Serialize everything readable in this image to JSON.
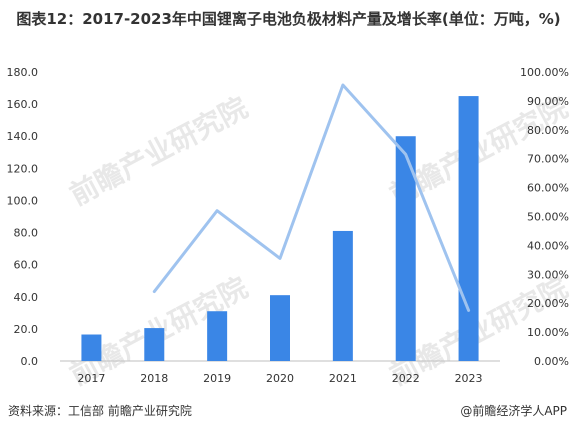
{
  "title": "图表12：2017-2023年中国锂离子电池负极材料产量及增长率(单位：万吨，%)",
  "source": "资料来源：工信部 前瞻产业研究院",
  "brand": "@前瞻经济学人APP",
  "watermark": "前瞻产业研究院",
  "colors": {
    "bar": "#3a86e6",
    "line": "#9fc3ef"
  },
  "chart_data": {
    "type": "bar",
    "categories": [
      "2017",
      "2018",
      "2019",
      "2020",
      "2021",
      "2022",
      "2023"
    ],
    "series": [
      {
        "type": "bar",
        "axis": "left",
        "values": [
          16.5,
          20.5,
          31.0,
          41.0,
          81.0,
          140.0,
          165.0
        ]
      },
      {
        "type": "line",
        "axis": "right",
        "values": [
          null,
          0.24,
          0.52,
          0.355,
          0.955,
          0.715,
          0.175
        ]
      }
    ],
    "y_left": {
      "min": 0,
      "max": 180,
      "ticks": [
        "0.0",
        "20.0",
        "40.0",
        "60.0",
        "80.0",
        "100.0",
        "120.0",
        "140.0",
        "160.0",
        "180.0"
      ]
    },
    "y_right": {
      "min": 0,
      "max": 1,
      "ticks": [
        "0.00%",
        "10.00%",
        "20.00%",
        "30.00%",
        "40.00%",
        "50.00%",
        "60.00%",
        "70.00%",
        "80.00%",
        "90.00%",
        "100.00%"
      ]
    },
    "grid": false,
    "legend": "none"
  }
}
